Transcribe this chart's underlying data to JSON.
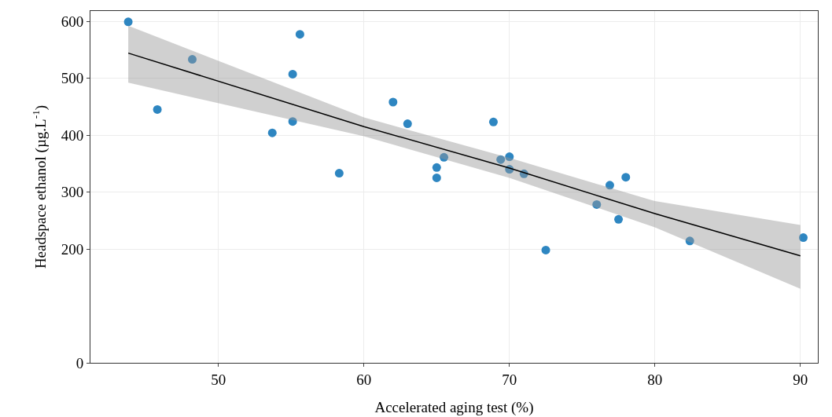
{
  "chart_data": {
    "type": "scatter",
    "xlabel": "Accelerated aging test (%)",
    "ylabel": "Headspace ethanol (µg.L$^{-1}$)",
    "xlim": [
      41.2,
      91.2
    ],
    "xticks": [
      50,
      60,
      70,
      80,
      90
    ],
    "ylim": [
      0,
      618
    ],
    "yticks": [
      0,
      200,
      300,
      400,
      500,
      600
    ],
    "grid": true,
    "marker": "circle",
    "series": [
      {
        "type": "line",
        "color": "#000000",
        "x": [
          43.8,
          60,
          70,
          80,
          90
        ],
        "values": [
          544,
          415,
          342,
          262,
          188
        ],
        "lower": [
          492,
          398,
          325,
          238,
          130
        ],
        "upper": [
          592,
          431,
          360,
          284,
          242
        ],
        "marker": "none"
      },
      {
        "type": "scatter",
        "color": "#2e86c1",
        "x": [
          43.8,
          48.2,
          45.8,
          55.1,
          55.6,
          55.1,
          53.7,
          58.3,
          62.0,
          63.0,
          65.0,
          65.0,
          65.5,
          68.9,
          69.4,
          70.0,
          70.0,
          71.0,
          72.5,
          76.0,
          76.9,
          78.0,
          77.5,
          82.4,
          90.2
        ],
        "values": [
          599,
          533,
          445,
          507,
          577,
          424,
          404,
          333,
          458,
          420,
          343,
          325,
          361,
          423,
          357,
          362,
          340,
          332,
          198,
          278,
          312,
          326,
          252,
          214,
          220
        ]
      }
    ]
  }
}
